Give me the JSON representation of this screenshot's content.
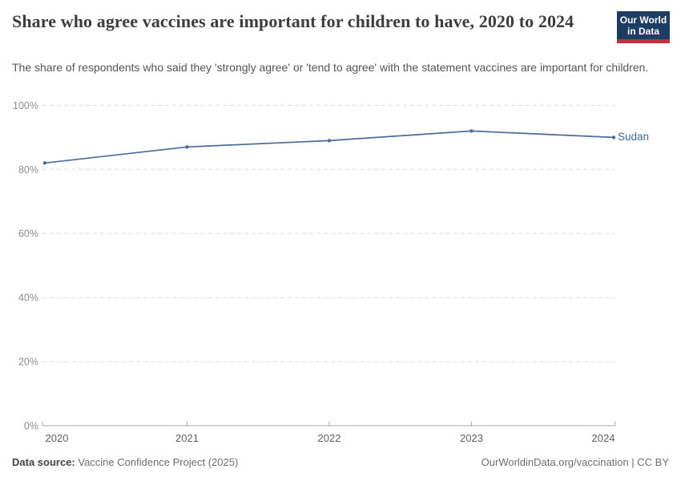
{
  "header": {
    "title": "Share who agree vaccines are important for children to have, 2020 to 2024",
    "subtitle": "The share of respondents who said they 'strongly agree' or 'tend to agree' with the statement vaccines are important for children.",
    "logo": {
      "line1": "Our World",
      "line2": "in Data",
      "bg_color": "#1d3d63",
      "accent_color": "#c5303e"
    }
  },
  "chart_data": {
    "type": "line",
    "title": "Share who agree vaccines are important for children to have, 2020 to 2024",
    "x": [
      2020,
      2021,
      2022,
      2023,
      2024
    ],
    "xtick_labels": [
      "2020",
      "2021",
      "2022",
      "2023",
      "2024"
    ],
    "series": [
      {
        "name": "Sudan",
        "values": [
          82,
          87,
          89,
          92,
          90
        ],
        "color": "#4c6a9c",
        "label_color": "#41659f"
      }
    ],
    "ylabel": "",
    "xlabel": "",
    "ylim": [
      0,
      100
    ],
    "yticks": [
      0,
      20,
      40,
      60,
      80,
      100
    ],
    "ytick_labels": [
      "0%",
      "20%",
      "40%",
      "60%",
      "80%",
      "100%"
    ],
    "grid": "horizontal-dashed",
    "grid_color": "#dcdcdc",
    "axis_color": "#a8a8a8",
    "ytick_label_color": "#8c8c8c",
    "xtick_label_color": "#5f5f5f",
    "legend_position": "end-of-line-label"
  },
  "footer": {
    "source_label": "Data source:",
    "source_value": " Vaccine Confidence Project (2025)",
    "attribution": "OurWorldinData.org/vaccination | CC BY"
  }
}
